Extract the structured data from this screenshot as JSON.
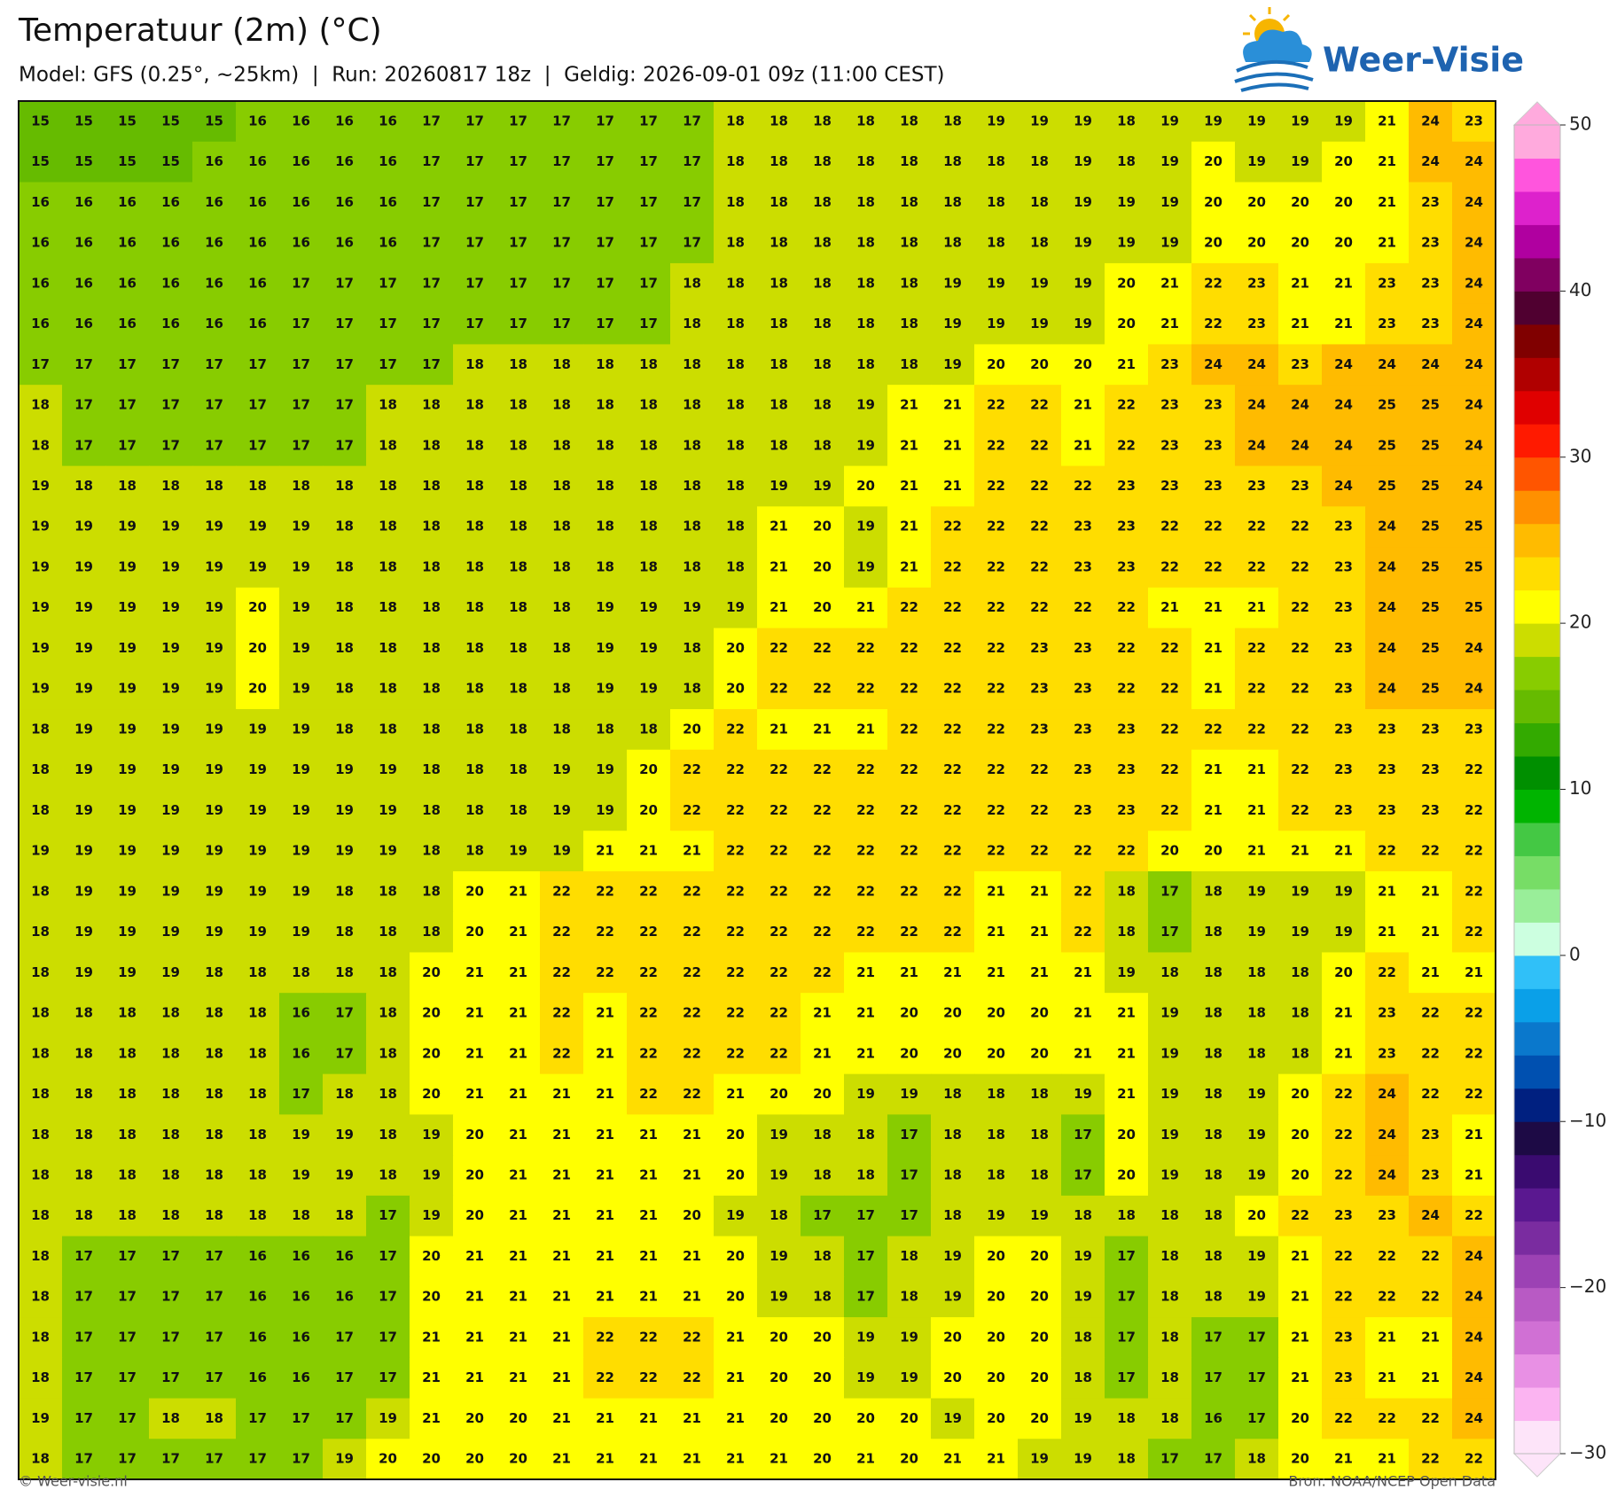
{
  "header": {
    "title": "Temperatuur (2m) (°C)",
    "subtitle": "Model: GFS (0.25°, ~25km)  |  Run: 20260817 18z  |  Geldig: 2026-09-01 09z (11:00 CEST)",
    "logo": "Weer-Visie"
  },
  "map": {
    "rows": [
      [
        15,
        15,
        15,
        15,
        15,
        16,
        16,
        16,
        16,
        17,
        17,
        17,
        17,
        17,
        17,
        17,
        18,
        18,
        18,
        18,
        18,
        18,
        19,
        19,
        19,
        18,
        19,
        19,
        19,
        19,
        19,
        21,
        24,
        23
      ],
      [
        15,
        15,
        15,
        15,
        16,
        16,
        16,
        16,
        16,
        17,
        17,
        17,
        17,
        17,
        17,
        17,
        18,
        18,
        18,
        18,
        18,
        18,
        18,
        18,
        19,
        18,
        19,
        20,
        19,
        19,
        20,
        21,
        24,
        24
      ],
      [
        16,
        16,
        16,
        16,
        16,
        16,
        16,
        16,
        16,
        17,
        17,
        17,
        17,
        17,
        17,
        17,
        18,
        18,
        18,
        18,
        18,
        18,
        18,
        18,
        19,
        19,
        19,
        20,
        20,
        20,
        20,
        21,
        23,
        24
      ],
      [
        16,
        16,
        16,
        16,
        16,
        16,
        16,
        16,
        16,
        17,
        17,
        17,
        17,
        17,
        17,
        17,
        18,
        18,
        18,
        18,
        18,
        18,
        18,
        18,
        19,
        19,
        19,
        20,
        20,
        20,
        20,
        21,
        23,
        24
      ],
      [
        16,
        16,
        16,
        16,
        16,
        16,
        17,
        17,
        17,
        17,
        17,
        17,
        17,
        17,
        17,
        18,
        18,
        18,
        18,
        18,
        18,
        19,
        19,
        19,
        19,
        20,
        21,
        22,
        23,
        21,
        21,
        23,
        23,
        24
      ],
      [
        16,
        16,
        16,
        16,
        16,
        16,
        17,
        17,
        17,
        17,
        17,
        17,
        17,
        17,
        17,
        18,
        18,
        18,
        18,
        18,
        18,
        19,
        19,
        19,
        19,
        20,
        21,
        22,
        23,
        21,
        21,
        23,
        23,
        24
      ],
      [
        17,
        17,
        17,
        17,
        17,
        17,
        17,
        17,
        17,
        17,
        18,
        18,
        18,
        18,
        18,
        18,
        18,
        18,
        18,
        18,
        18,
        19,
        20,
        20,
        20,
        21,
        23,
        24,
        24,
        23,
        24,
        24,
        24,
        24
      ],
      [
        18,
        17,
        17,
        17,
        17,
        17,
        17,
        17,
        18,
        18,
        18,
        18,
        18,
        18,
        18,
        18,
        18,
        18,
        18,
        19,
        21,
        21,
        22,
        22,
        21,
        22,
        23,
        23,
        24,
        24,
        24,
        25,
        25,
        24
      ],
      [
        18,
        17,
        17,
        17,
        17,
        17,
        17,
        17,
        18,
        18,
        18,
        18,
        18,
        18,
        18,
        18,
        18,
        18,
        18,
        19,
        21,
        21,
        22,
        22,
        21,
        22,
        23,
        23,
        24,
        24,
        24,
        25,
        25,
        24
      ],
      [
        19,
        18,
        18,
        18,
        18,
        18,
        18,
        18,
        18,
        18,
        18,
        18,
        18,
        18,
        18,
        18,
        18,
        19,
        19,
        20,
        21,
        21,
        22,
        22,
        22,
        23,
        23,
        23,
        23,
        23,
        24,
        25,
        25,
        24
      ],
      [
        19,
        19,
        19,
        19,
        19,
        19,
        19,
        18,
        18,
        18,
        18,
        18,
        18,
        18,
        18,
        18,
        18,
        21,
        20,
        19,
        21,
        22,
        22,
        22,
        23,
        23,
        22,
        22,
        22,
        22,
        23,
        24,
        25,
        25
      ],
      [
        19,
        19,
        19,
        19,
        19,
        19,
        19,
        18,
        18,
        18,
        18,
        18,
        18,
        18,
        18,
        18,
        18,
        21,
        20,
        19,
        21,
        22,
        22,
        22,
        23,
        23,
        22,
        22,
        22,
        22,
        23,
        24,
        25,
        25
      ],
      [
        19,
        19,
        19,
        19,
        19,
        20,
        19,
        18,
        18,
        18,
        18,
        18,
        18,
        19,
        19,
        19,
        19,
        21,
        20,
        21,
        22,
        22,
        22,
        22,
        22,
        22,
        21,
        21,
        21,
        22,
        23,
        24,
        25,
        25
      ],
      [
        19,
        19,
        19,
        19,
        19,
        20,
        19,
        18,
        18,
        18,
        18,
        18,
        18,
        19,
        19,
        18,
        20,
        22,
        22,
        22,
        22,
        22,
        22,
        23,
        23,
        22,
        22,
        21,
        22,
        22,
        23,
        24,
        25,
        24
      ],
      [
        19,
        19,
        19,
        19,
        19,
        20,
        19,
        18,
        18,
        18,
        18,
        18,
        18,
        19,
        19,
        18,
        20,
        22,
        22,
        22,
        22,
        22,
        22,
        23,
        23,
        22,
        22,
        21,
        22,
        22,
        23,
        24,
        25,
        24
      ],
      [
        18,
        19,
        19,
        19,
        19,
        19,
        19,
        18,
        18,
        18,
        18,
        18,
        18,
        18,
        18,
        20,
        22,
        21,
        21,
        21,
        22,
        22,
        22,
        23,
        23,
        23,
        22,
        22,
        22,
        22,
        23,
        23,
        23,
        23
      ],
      [
        18,
        19,
        19,
        19,
        19,
        19,
        19,
        19,
        19,
        18,
        18,
        18,
        19,
        19,
        20,
        22,
        22,
        22,
        22,
        22,
        22,
        22,
        22,
        22,
        23,
        23,
        22,
        21,
        21,
        22,
        23,
        23,
        23,
        22
      ],
      [
        18,
        19,
        19,
        19,
        19,
        19,
        19,
        19,
        19,
        18,
        18,
        18,
        19,
        19,
        20,
        22,
        22,
        22,
        22,
        22,
        22,
        22,
        22,
        22,
        23,
        23,
        22,
        21,
        21,
        22,
        23,
        23,
        23,
        22
      ],
      [
        19,
        19,
        19,
        19,
        19,
        19,
        19,
        19,
        19,
        18,
        18,
        19,
        19,
        21,
        21,
        21,
        22,
        22,
        22,
        22,
        22,
        22,
        22,
        22,
        22,
        22,
        20,
        20,
        21,
        21,
        21,
        22,
        22,
        22
      ],
      [
        18,
        19,
        19,
        19,
        19,
        19,
        19,
        18,
        18,
        18,
        20,
        21,
        22,
        22,
        22,
        22,
        22,
        22,
        22,
        22,
        22,
        22,
        21,
        21,
        22,
        18,
        17,
        18,
        19,
        19,
        19,
        21,
        21,
        22
      ],
      [
        18,
        19,
        19,
        19,
        19,
        19,
        19,
        18,
        18,
        18,
        20,
        21,
        22,
        22,
        22,
        22,
        22,
        22,
        22,
        22,
        22,
        22,
        21,
        21,
        22,
        18,
        17,
        18,
        19,
        19,
        19,
        21,
        21,
        22
      ],
      [
        18,
        19,
        19,
        19,
        18,
        18,
        18,
        18,
        18,
        20,
        21,
        21,
        22,
        22,
        22,
        22,
        22,
        22,
        22,
        21,
        21,
        21,
        21,
        21,
        21,
        19,
        18,
        18,
        18,
        18,
        20,
        22,
        21,
        21
      ],
      [
        18,
        18,
        18,
        18,
        18,
        18,
        16,
        17,
        18,
        20,
        21,
        21,
        22,
        21,
        22,
        22,
        22,
        22,
        21,
        21,
        20,
        20,
        20,
        20,
        21,
        21,
        19,
        18,
        18,
        18,
        21,
        23,
        22,
        22
      ],
      [
        18,
        18,
        18,
        18,
        18,
        18,
        16,
        17,
        18,
        20,
        21,
        21,
        22,
        21,
        22,
        22,
        22,
        22,
        21,
        21,
        20,
        20,
        20,
        20,
        21,
        21,
        19,
        18,
        18,
        18,
        21,
        23,
        22,
        22
      ],
      [
        18,
        18,
        18,
        18,
        18,
        18,
        17,
        18,
        18,
        20,
        21,
        21,
        21,
        21,
        22,
        22,
        21,
        20,
        20,
        19,
        19,
        18,
        18,
        18,
        19,
        21,
        19,
        18,
        19,
        20,
        22,
        24,
        22,
        22
      ],
      [
        18,
        18,
        18,
        18,
        18,
        18,
        19,
        19,
        18,
        19,
        20,
        21,
        21,
        21,
        21,
        21,
        20,
        19,
        18,
        18,
        17,
        18,
        18,
        18,
        17,
        20,
        19,
        18,
        19,
        20,
        22,
        24,
        23,
        21
      ],
      [
        18,
        18,
        18,
        18,
        18,
        18,
        19,
        19,
        18,
        19,
        20,
        21,
        21,
        21,
        21,
        21,
        20,
        19,
        18,
        18,
        17,
        18,
        18,
        18,
        17,
        20,
        19,
        18,
        19,
        20,
        22,
        24,
        23,
        21
      ],
      [
        18,
        18,
        18,
        18,
        18,
        18,
        18,
        18,
        17,
        19,
        20,
        21,
        21,
        21,
        21,
        20,
        19,
        18,
        17,
        17,
        17,
        18,
        19,
        19,
        18,
        18,
        18,
        18,
        20,
        22,
        23,
        23,
        24,
        22
      ],
      [
        18,
        17,
        17,
        17,
        17,
        16,
        16,
        16,
        17,
        20,
        21,
        21,
        21,
        21,
        21,
        21,
        20,
        19,
        18,
        17,
        18,
        19,
        20,
        20,
        19,
        17,
        18,
        18,
        19,
        21,
        22,
        22,
        22,
        24
      ],
      [
        18,
        17,
        17,
        17,
        17,
        16,
        16,
        16,
        17,
        20,
        21,
        21,
        21,
        21,
        21,
        21,
        20,
        19,
        18,
        17,
        18,
        19,
        20,
        20,
        19,
        17,
        18,
        18,
        19,
        21,
        22,
        22,
        22,
        24
      ],
      [
        18,
        17,
        17,
        17,
        17,
        16,
        16,
        17,
        17,
        21,
        21,
        21,
        21,
        22,
        22,
        22,
        21,
        20,
        20,
        19,
        19,
        20,
        20,
        20,
        18,
        17,
        18,
        17,
        17,
        21,
        23,
        21,
        21,
        24
      ],
      [
        18,
        17,
        17,
        17,
        17,
        16,
        16,
        17,
        17,
        21,
        21,
        21,
        21,
        22,
        22,
        22,
        21,
        20,
        20,
        19,
        19,
        20,
        20,
        20,
        18,
        17,
        18,
        17,
        17,
        21,
        23,
        21,
        21,
        24
      ],
      [
        19,
        17,
        17,
        18,
        18,
        17,
        17,
        17,
        19,
        21,
        20,
        20,
        21,
        21,
        21,
        21,
        21,
        20,
        20,
        20,
        20,
        19,
        20,
        20,
        19,
        18,
        18,
        16,
        17,
        20,
        22,
        22,
        22,
        24
      ],
      [
        18,
        17,
        17,
        17,
        17,
        17,
        17,
        19,
        20,
        20,
        20,
        20,
        21,
        21,
        21,
        21,
        21,
        21,
        20,
        21,
        20,
        21,
        21,
        19,
        19,
        18,
        17,
        17,
        18,
        20,
        21,
        21,
        22,
        22
      ]
    ],
    "colorbar": {
      "lim": [
        -30,
        50
      ],
      "ticks": [
        50,
        40,
        30,
        20,
        10,
        0,
        {
          "value": -10,
          "label": "−10"
        },
        {
          "value": -20,
          "label": "−20"
        },
        {
          "value": -30,
          "label": "−30"
        }
      ],
      "colors": [
        "#fde4f9",
        "#fbb4f1",
        "#e890e4",
        "#d070d4",
        "#b85ac4",
        "#9c42b4",
        "#7a2ca0",
        "#5a1890",
        "#3a0b70",
        "#1d0a45",
        "#002080",
        "#0050b0",
        "#0a78cc",
        "#0aa0e8",
        "#30c0f8",
        "#ccffe0",
        "#99ee99",
        "#77dd66",
        "#44c844",
        "#00b400",
        "#008f00",
        "#33aa00",
        "#66bb00",
        "#88cc00",
        "#ccdd00",
        "#ffff00",
        "#ffdd00",
        "#ffbb00",
        "#ff9000",
        "#ff5500",
        "#ff1a00",
        "#e00000",
        "#b00000",
        "#800000",
        "#500030",
        "#800060",
        "#b000a0",
        "#dd22cc",
        "#ff55dd",
        "#ffaadd"
      ]
    }
  },
  "footer": {
    "left": "© Weer-visie.nl",
    "right": "Bron: NOAA/NCEP Open Data"
  }
}
